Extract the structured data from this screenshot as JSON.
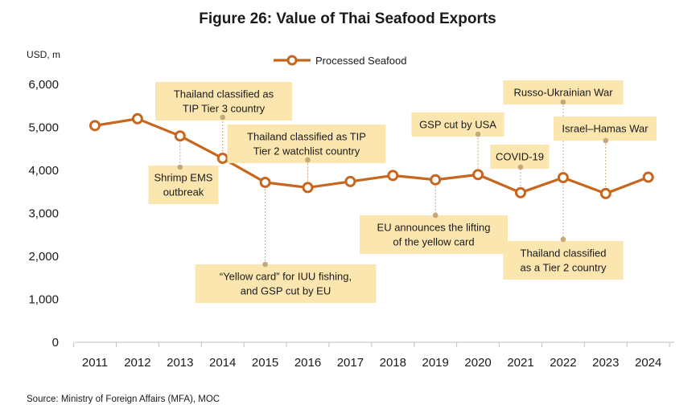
{
  "chart_data": {
    "type": "line",
    "title": "Figure 26: Value of Thai Seafood Exports",
    "ylabel": "USD, m",
    "xlabel": "",
    "categories": [
      "2011",
      "2012",
      "2013",
      "2014",
      "2015",
      "2016",
      "2017",
      "2018",
      "2019",
      "2020",
      "2021",
      "2022",
      "2023",
      "2024"
    ],
    "series": [
      {
        "name": "Processed Seafood",
        "values": [
          5040,
          5200,
          4800,
          4280,
          3720,
          3600,
          3740,
          3880,
          3780,
          3900,
          3480,
          3830,
          3460,
          3840
        ]
      }
    ],
    "ylim": [
      0,
      6000
    ],
    "yticks": [
      0,
      1000,
      2000,
      3000,
      4000,
      5000,
      6000
    ],
    "ytick_labels": [
      "0",
      "1,000",
      "2,000",
      "3,000",
      "4,000",
      "5,000",
      "6,000"
    ],
    "grid": false,
    "legend_position": "top-center",
    "line_color": "#c8661e",
    "annotation_fill": "#fbe6b0",
    "annotation_connector_color": "#c6a67a",
    "annotations": [
      {
        "lines": [
          "Shrimp EMS",
          "outbreak"
        ],
        "year": "2013",
        "side": "below"
      },
      {
        "lines": [
          "Thailand classified as",
          "TIP Tier 3 country"
        ],
        "year": "2014",
        "side": "above"
      },
      {
        "lines": [
          "“Yellow card” for IUU fishing,",
          "and GSP cut by EU"
        ],
        "year": "2015",
        "side": "below"
      },
      {
        "lines": [
          "Thailand classified as TIP",
          "Tier 2 watchlist country"
        ],
        "year": "2016",
        "side": "above"
      },
      {
        "lines": [
          "EU announces the lifting",
          "of the yellow card"
        ],
        "year": "2019",
        "side": "below"
      },
      {
        "lines": [
          "GSP cut by USA"
        ],
        "year": "2020",
        "side": "above"
      },
      {
        "lines": [
          "COVID-19"
        ],
        "year": "2021",
        "side": "above"
      },
      {
        "lines": [
          "Russo-Ukrainian War"
        ],
        "year": "2022",
        "side": "above"
      },
      {
        "lines": [
          "Thailand classified",
          "as a Tier 2 country"
        ],
        "year": "2022",
        "side": "below"
      },
      {
        "lines": [
          "Israel–Hamas War"
        ],
        "year": "2023",
        "side": "above"
      }
    ]
  },
  "source": "Source: Ministry of Foreign Affairs (MFA), MOC"
}
